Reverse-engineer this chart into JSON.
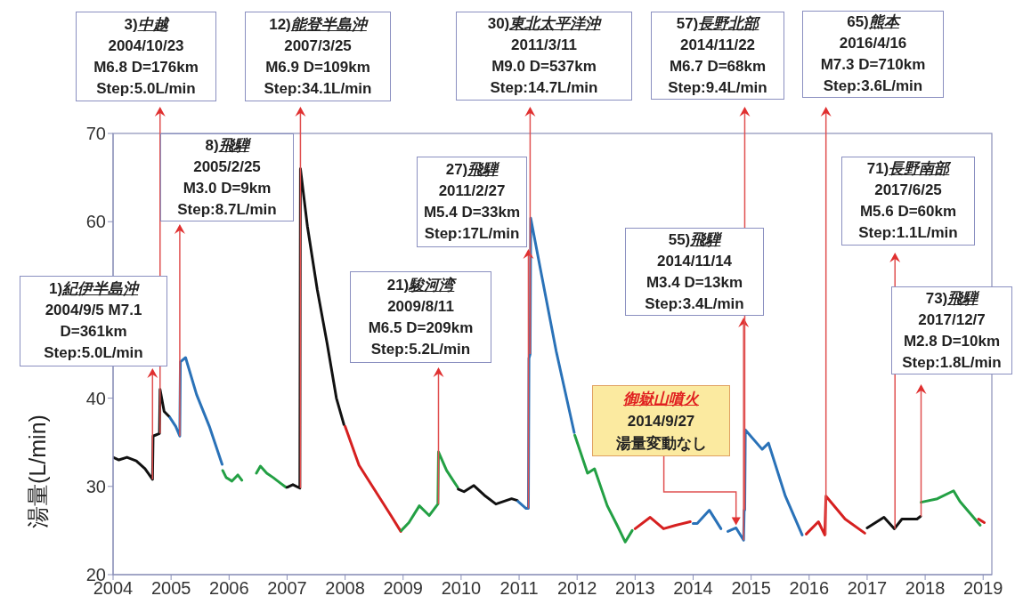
{
  "chart_data": {
    "type": "line",
    "ylabel": "湯量(L/min)",
    "xlim": [
      2004,
      2019.15
    ],
    "xticks": [
      2004,
      2005,
      2006,
      2007,
      2008,
      2009,
      2010,
      2011,
      2012,
      2013,
      2014,
      2015,
      2016,
      2017,
      2018,
      2019
    ],
    "ylim": [
      20,
      70
    ],
    "yticks": [
      20,
      30,
      40,
      {
        "value": 50,
        "label": null
      },
      60,
      70
    ],
    "series": [
      {
        "color": "#111111",
        "x": [
          2004.0,
          2004.1,
          2004.24,
          2004.4,
          2004.55,
          2004.68,
          2004.69,
          2004.8,
          2004.81,
          2004.88,
          2004.97
        ],
        "values": [
          33.3,
          33.0,
          33.3,
          32.9,
          32.0,
          30.8,
          35.7,
          36.0,
          41.0,
          38.5,
          37.9
        ]
      },
      {
        "color": "#2a72b8",
        "x": [
          2004.98,
          2005.08,
          2005.15,
          2005.16,
          2005.25,
          2005.44,
          2005.66,
          2005.88
        ],
        "values": [
          37.8,
          36.8,
          35.7,
          44.1,
          44.6,
          40.4,
          36.8,
          32.5
        ]
      },
      {
        "color": "#23a044",
        "x": [
          2005.89,
          2005.95,
          2006.05,
          2006.15,
          2006.22
        ],
        "values": [
          31.8,
          31.0,
          30.6,
          31.3,
          30.7
        ]
      },
      {
        "color": "#23a044",
        "x": [
          2006.47,
          2006.54,
          2006.65,
          2006.76,
          2006.9,
          2006.98
        ],
        "values": [
          31.5,
          32.3,
          31.5,
          31.0,
          30.3,
          29.9
        ]
      },
      {
        "color": "#111111",
        "x": [
          2007.0,
          2007.1,
          2007.22,
          2007.23,
          2007.35,
          2007.52,
          2007.69,
          2007.85,
          2007.98
        ],
        "values": [
          29.9,
          30.2,
          29.8,
          66.0,
          59.5,
          52.3,
          46.2,
          40.0,
          37.0
        ]
      },
      {
        "color": "#d62020",
        "x": [
          2008.0,
          2008.24,
          2008.51,
          2008.79,
          2008.96
        ],
        "values": [
          36.8,
          32.4,
          29.6,
          26.7,
          24.9
        ]
      },
      {
        "color": "#23a044",
        "x": [
          2008.97,
          2009.1,
          2009.28,
          2009.45,
          2009.6,
          2009.61,
          2009.75,
          2009.94
        ],
        "values": [
          25.0,
          25.9,
          27.8,
          26.7,
          28.0,
          33.9,
          31.8,
          29.9
        ]
      },
      {
        "color": "#111111",
        "x": [
          2009.95,
          2010.05,
          2010.22,
          2010.4,
          2010.6,
          2010.87,
          2010.97
        ],
        "values": [
          29.7,
          29.4,
          30.1,
          29.0,
          28.0,
          28.6,
          28.4
        ]
      },
      {
        "color": "#2a72b8",
        "x": [
          2010.98,
          2011.12,
          2011.16,
          2011.17,
          2011.19,
          2011.2,
          2011.38,
          2011.64,
          2011.95
        ],
        "values": [
          28.3,
          27.5,
          27.5,
          44.5,
          45.0,
          60.4,
          54.2,
          45.3,
          36.1
        ]
      },
      {
        "color": "#23a044",
        "x": [
          2011.96,
          2012.18,
          2012.3,
          2012.52,
          2012.69,
          2012.83,
          2012.95
        ],
        "values": [
          35.8,
          31.5,
          32.0,
          27.8,
          25.6,
          23.7,
          25.0
        ]
      },
      {
        "color": "#d62020",
        "x": [
          2013.0,
          2013.26,
          2013.49,
          2013.7,
          2013.95
        ],
        "values": [
          25.2,
          26.5,
          25.2,
          25.6,
          26.0
        ]
      },
      {
        "color": "#2a72b8",
        "x": [
          2014.0,
          2014.07,
          2014.28,
          2014.48
        ],
        "values": [
          25.8,
          25.8,
          27.3,
          25.2
        ]
      },
      {
        "color": "#2a72b8",
        "x": [
          2014.6,
          2014.74,
          2014.87,
          2014.88,
          2014.89,
          2014.9,
          2015.19,
          2015.3,
          2015.59,
          2015.88
        ],
        "values": [
          24.9,
          25.3,
          23.9,
          27.3,
          27.3,
          36.4,
          34.2,
          34.9,
          28.9,
          24.5
        ]
      },
      {
        "color": "#d62020",
        "x": [
          2015.95,
          2016.16,
          2016.27,
          2016.29,
          2016.62,
          2016.96
        ],
        "values": [
          24.6,
          26.0,
          24.5,
          28.9,
          26.3,
          24.7
        ]
      },
      {
        "color": "#111111",
        "x": [
          2017.0,
          2017.29,
          2017.47,
          2017.6,
          2017.86,
          2017.92
        ],
        "values": [
          25.3,
          26.5,
          25.2,
          26.3,
          26.3,
          26.6
        ]
      },
      {
        "color": "#23a044",
        "x": [
          2017.93,
          2018.21,
          2018.49,
          2018.6,
          2018.95
        ],
        "values": [
          28.2,
          28.6,
          29.5,
          28.3,
          25.6
        ]
      },
      {
        "color": "#d62020",
        "x": [
          2018.92,
          2019.02
        ],
        "values": [
          26.3,
          25.9
        ]
      }
    ],
    "annotations": [
      {
        "text": "1)紀伊半島沖\n2004/9/5 M7.1\nD=361km\nStep:5.0L/min",
        "x": 2004.68,
        "y": 30.8
      },
      {
        "text": "3)中越\n2004/10/23\nM6.8 D=176km\nStep:5.0L/min",
        "x": 2004.81,
        "y": 36.0
      },
      {
        "text": "8)飛騨\n2005/2/25\nM3.0 D=9km\nStep:8.7L/min",
        "x": 2005.15,
        "y": 35.7
      },
      {
        "text": "12)能登半島沖\n2007/3/25\nM6.9 D=109km\nStep:34.1L/min",
        "x": 2007.23,
        "y": 29.8
      },
      {
        "text": "21)駿河湾\n2009/8/11\nM6.5 D=209km\nStep:5.2L/min",
        "x": 2009.61,
        "y": 28.0
      },
      {
        "text": "27)飛騨\n2011/2/27\nM5.4 D=33km\nStep:17L/min",
        "x": 2011.16,
        "y": 27.5
      },
      {
        "text": "30)東北太平洋沖\n2011/3/11\nM9.0 D=537km\nStep:14.7L/min",
        "x": 2011.19,
        "y": 45.0
      },
      {
        "text": "55)飛騨\n2014/11/14\nM3.4 D=13km\nStep:3.4L/min",
        "x": 2014.87,
        "y": 23.9
      },
      {
        "text": "57)長野北部\n2014/11/22\nM6.7 D=68km\nStep:9.4L/min",
        "x": 2014.89,
        "y": 27.3
      },
      {
        "text": "65)熊本\n2016/4/16\nM7.3 D=710km\nStep:3.6L/min",
        "x": 2016.29,
        "y": 24.5
      },
      {
        "text": "71)長野南部\n2017/6/25\nM5.6 D=60km\nStep:1.1L/min",
        "x": 2017.48,
        "y": 25.2
      },
      {
        "text": "73)飛騨\n2017/12/7\nM2.8 D=10km\nStep:1.8L/min",
        "x": 2017.93,
        "y": 26.6
      },
      {
        "text": "御嶽山噴火\n2014/9/27\n湯量変動なし",
        "x": 2014.74,
        "y": 25.3
      }
    ]
  }
}
